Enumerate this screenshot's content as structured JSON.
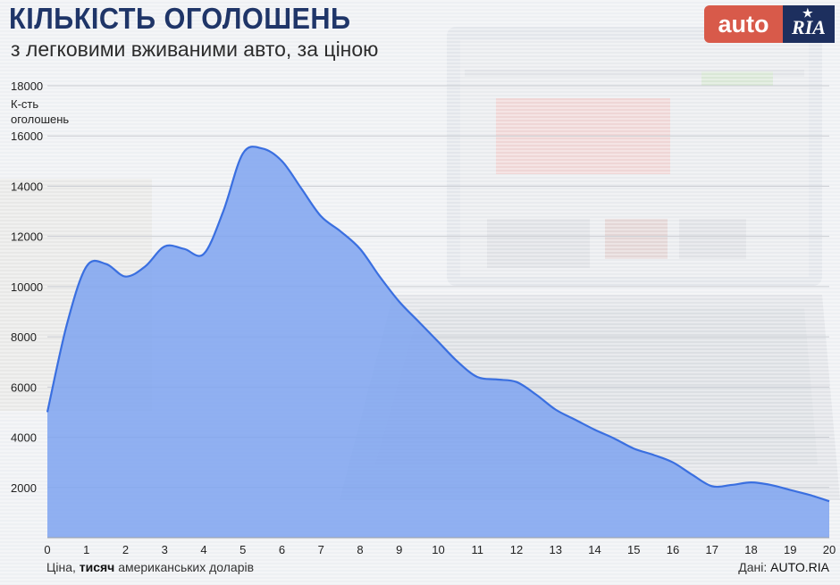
{
  "header": {
    "title": "КІЛЬКІСТЬ ОГОЛОШЕНЬ",
    "subtitle": "з легковими вживаними авто, за ціною"
  },
  "logo": {
    "part1": "auto",
    "part2": "RIA",
    "star": "★"
  },
  "footer": {
    "xlabel_prefix": "Ціна,",
    "xlabel_bold": "тисяч",
    "xlabel_suffix": "американських доларів",
    "source_prefix": "Дані:",
    "source_name": "AUTO.RIA"
  },
  "colors": {
    "title": "#1f3568",
    "area_fill": "#7ea3f0",
    "line": "#3a6fe0",
    "logo_auto": "#d85a4a",
    "logo_ria": "#1d2f5e"
  },
  "chart_data": {
    "type": "area",
    "title": "КІЛЬКІСТЬ ОГОЛОШЕНЬ",
    "subtitle": "з легковими вживаними авто, за ціною",
    "xlabel": "Ціна, тисяч американських доларів",
    "ylabel": "К-сть оголошень",
    "xlim": [
      0,
      20
    ],
    "ylim": [
      0,
      18000
    ],
    "x_ticks": [
      0,
      1,
      2,
      3,
      4,
      5,
      6,
      7,
      8,
      9,
      10,
      11,
      12,
      13,
      14,
      15,
      16,
      17,
      18,
      19,
      20
    ],
    "y_ticks": [
      2000,
      4000,
      6000,
      8000,
      10000,
      12000,
      14000,
      16000,
      18000
    ],
    "grid": true,
    "x": [
      0,
      0.5,
      1,
      1.5,
      2,
      2.5,
      3,
      3.5,
      4,
      4.5,
      5,
      5.5,
      6,
      6.5,
      7,
      7.5,
      8,
      8.5,
      9,
      9.5,
      10,
      10.5,
      11,
      11.5,
      12,
      12.5,
      13,
      13.5,
      14,
      14.5,
      15,
      15.5,
      16,
      16.5,
      17,
      17.5,
      18,
      18.5,
      19,
      19.5,
      20
    ],
    "y": [
      5000,
      8500,
      10800,
      10900,
      10400,
      10800,
      11600,
      11500,
      11300,
      13000,
      15300,
      15500,
      15000,
      13900,
      12800,
      12200,
      11500,
      10400,
      9400,
      8600,
      7800,
      7000,
      6400,
      6300,
      6200,
      5700,
      5100,
      4700,
      4300,
      3950,
      3550,
      3300,
      3000,
      2500,
      2050,
      2100,
      2200,
      2100,
      1900,
      1700,
      1450
    ]
  }
}
